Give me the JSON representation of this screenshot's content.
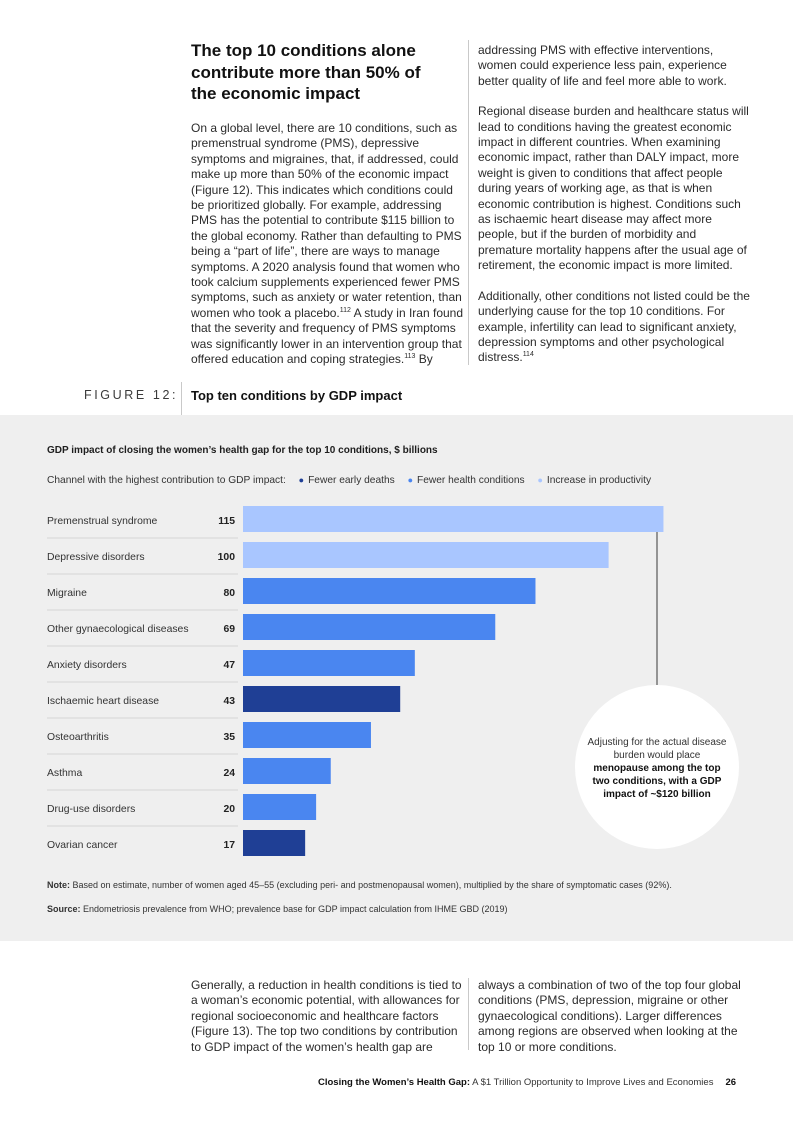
{
  "top_section": {
    "heading": "The top 10 conditions alone contribute more than 50% of the economic impact",
    "left_paragraph": {
      "text": "On a global level, there are 10 conditions, such as premenstrual syndrome (PMS), depressive symptoms and migraines, that, if addressed, could make up more than 50% of the economic impact (Figure 12). This indicates which conditions could be prioritized globally. For example, addressing PMS has the potential to contribute $115 billion to the global economy. Rather than defaulting to PMS being a “part of life”, there are ways to manage symptoms. A 2020 analysis found that women who took calcium supplements experienced fewer PMS symptoms, such as anxiety or water retention, than women who took a placebo.",
      "ref1": "112",
      "text2": " A study in Iran found that the severity and frequency of PMS symptoms was significantly lower in an intervention group that offered education and coping strategies.",
      "ref2": "113",
      "text3": " By"
    },
    "right_paragraphs": [
      "addressing PMS with effective interventions, women could experience less pain, experience better quality of life and feel more able to work.",
      "Regional disease burden and healthcare status will lead to conditions having the greatest economic impact in different countries. When examining economic impact, rather than DALY impact, more weight is given to conditions that affect people during years of working age, as that is when economic contribution is highest. Conditions such as ischaemic heart disease may affect more people, but if the burden of morbidity and premature mortality happens after the usual age of retirement, the economic impact is more limited."
    ],
    "right_last_paragraph": {
      "text": "Additionally, other conditions not listed could be the underlying cause for the top 10 conditions. For example, infertility can lead to significant anxiety, depression symptoms and other psychological distress.",
      "ref": "114"
    }
  },
  "figure": {
    "label": "FIGURE 12:",
    "title": "Top ten conditions by GDP impact"
  },
  "chart_data": {
    "type": "bar",
    "orientation": "horizontal",
    "title": "GDP impact of closing the women’s health gap for the top 10 conditions, $ billions",
    "legend_prefix": "Channel with the highest contribution to GDP impact:",
    "legend": [
      {
        "name": "Fewer early deaths",
        "color": "#1f3f95"
      },
      {
        "name": "Fewer health conditions",
        "color": "#4a86f0"
      },
      {
        "name": "Increase in productivity",
        "color": "#a9c6ff"
      }
    ],
    "categories": [
      "Premenstrual syndrome",
      "Depressive disorders",
      "Migraine",
      "Other gynaecological diseases",
      "Anxiety disorders",
      "Ischaemic heart disease",
      "Osteoarthritis",
      "Asthma",
      "Drug-use disorders",
      "Ovarian cancer"
    ],
    "values": [
      115,
      100,
      80,
      69,
      47,
      43,
      35,
      24,
      20,
      17
    ],
    "channel": [
      "Increase in productivity",
      "Increase in productivity",
      "Fewer health conditions",
      "Fewer health conditions",
      "Fewer health conditions",
      "Fewer early deaths",
      "Fewer health conditions",
      "Fewer health conditions",
      "Fewer health conditions",
      "Fewer early deaths"
    ],
    "xlim": [
      0,
      120
    ],
    "grid": false,
    "callout_normal": "Adjusting for the actual disease burden would place ",
    "callout_bold": "menopause among the top two conditions, with a GDP impact of ~$120 billion",
    "callout_value": 120
  },
  "notes": {
    "note_label": "Note:",
    "note_text": " Based on estimate, number of women aged 45–55 (excluding peri- and postmenopausal women), multiplied by the share of symptomatic cases (92%).",
    "source_label": "Source:",
    "source_text": " Endometriosis prevalence from WHO; prevalence base for GDP impact calculation from IHME GBD (2019)"
  },
  "bottom_section": {
    "left_paragraph": "Generally, a reduction in health conditions is tied to a woman’s economic potential, with allowances for regional socioeconomic and healthcare factors (Figure 13). The top two conditions by contribution to GDP impact of the women’s health gap are",
    "right_paragraph": "always a combination of two of the top four global conditions (PMS, depression, migraine or other gynaecological conditions). Larger differences among regions are observed when looking at the top 10 or more conditions."
  },
  "footer": {
    "bold": "Closing the Women’s Health Gap:",
    "normal": " A $1 Trillion Opportunity to Improve Lives and Economies",
    "page": "26"
  }
}
